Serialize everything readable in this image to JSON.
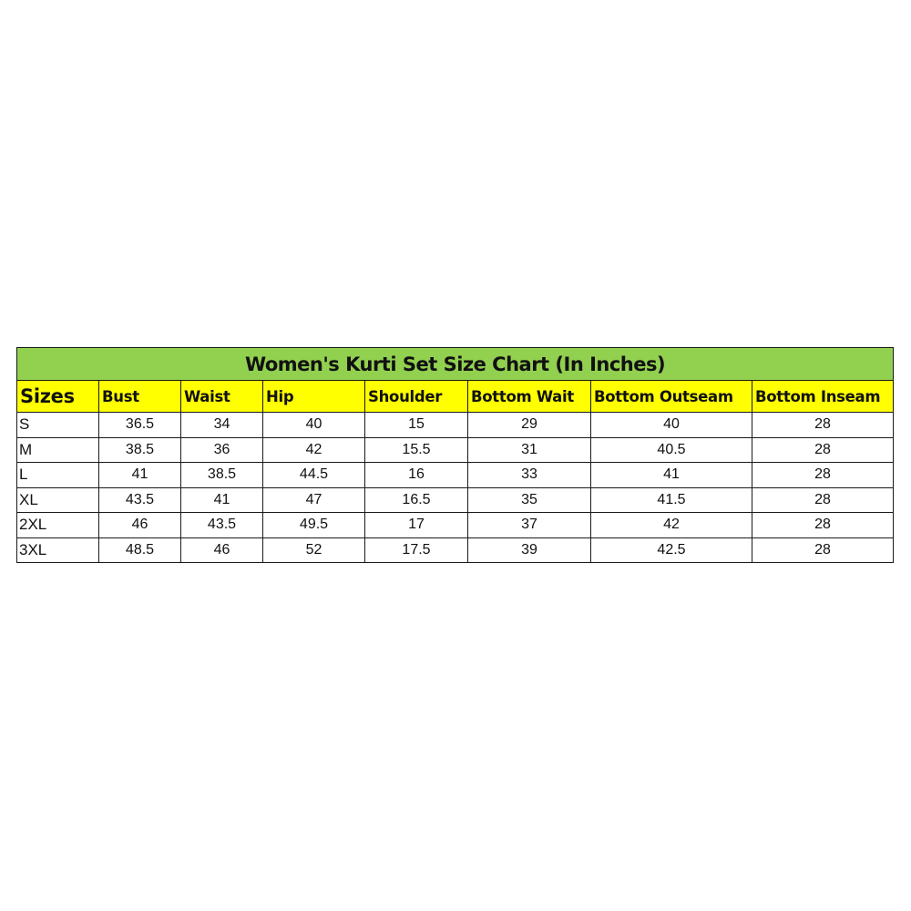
{
  "title": "Women's Kurti Set Size Chart (In Inches)",
  "colors": {
    "title_bg": "#92d050",
    "header_bg": "#ffff00",
    "border": "#1a1a1a"
  },
  "headers": [
    "Sizes",
    "Bust",
    "Waist",
    "Hip",
    "Shoulder",
    "Bottom Wait",
    "Bottom Outseam",
    "Bottom Inseam"
  ],
  "rows": [
    [
      "S",
      "36.5",
      "34",
      "40",
      "15",
      "29",
      "40",
      "28"
    ],
    [
      "M",
      "38.5",
      "36",
      "42",
      "15.5",
      "31",
      "40.5",
      "28"
    ],
    [
      "L",
      "41",
      "38.5",
      "44.5",
      "16",
      "33",
      "41",
      "28"
    ],
    [
      "XL",
      "43.5",
      "41",
      "47",
      "16.5",
      "35",
      "41.5",
      "28"
    ],
    [
      "2XL",
      "46",
      "43.5",
      "49.5",
      "17",
      "37",
      "42",
      "28"
    ],
    [
      "3XL",
      "48.5",
      "46",
      "52",
      "17.5",
      "39",
      "42.5",
      "28"
    ]
  ]
}
